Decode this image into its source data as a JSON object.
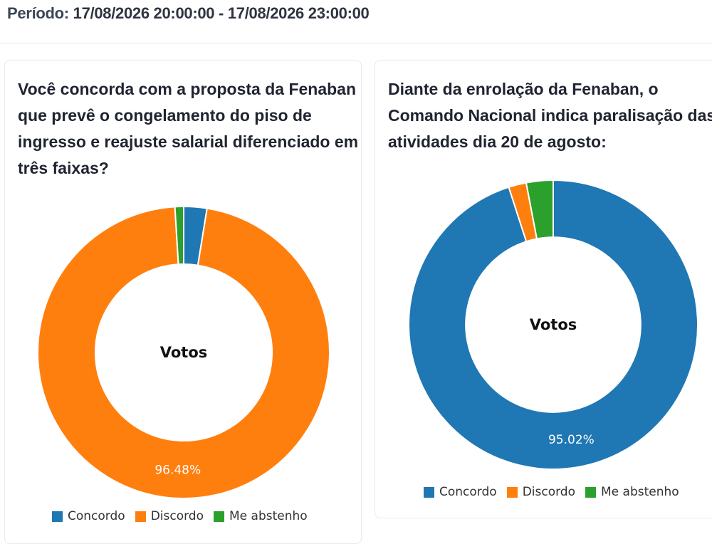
{
  "header": {
    "period_label": "Período:",
    "period_value": "17/08/2026 20:00:00 - 17/08/2026 23:00:00"
  },
  "chart_data": [
    {
      "type": "pie",
      "title": "Você concorda com a proposta da Fenaban que prevê o congelamento do piso de ingresso e reajuste salarial diferenciado em três faixas?",
      "center_label": "Votos",
      "categories": [
        "Concordo",
        "Discordo",
        "Me abstenho"
      ],
      "values": [
        2.56,
        96.48,
        0.96
      ],
      "colors": [
        "#1f77b4",
        "#ff7f0e",
        "#2ca02c"
      ],
      "data_labels": {
        "Discordo": "96.48%"
      },
      "legend": "bottom"
    },
    {
      "type": "pie",
      "title": "Diante da enrolação da Fenaban, o Comando Nacional indica paralisação das atividades dia 20 de agosto:",
      "center_label": "Votos",
      "categories": [
        "Concordo",
        "Discordo",
        "Me abstenho"
      ],
      "values": [
        95.02,
        1.98,
        3.0
      ],
      "colors": [
        "#1f77b4",
        "#ff7f0e",
        "#2ca02c"
      ],
      "data_labels": {
        "Concordo": "95.02%"
      },
      "legend": "bottom"
    }
  ]
}
